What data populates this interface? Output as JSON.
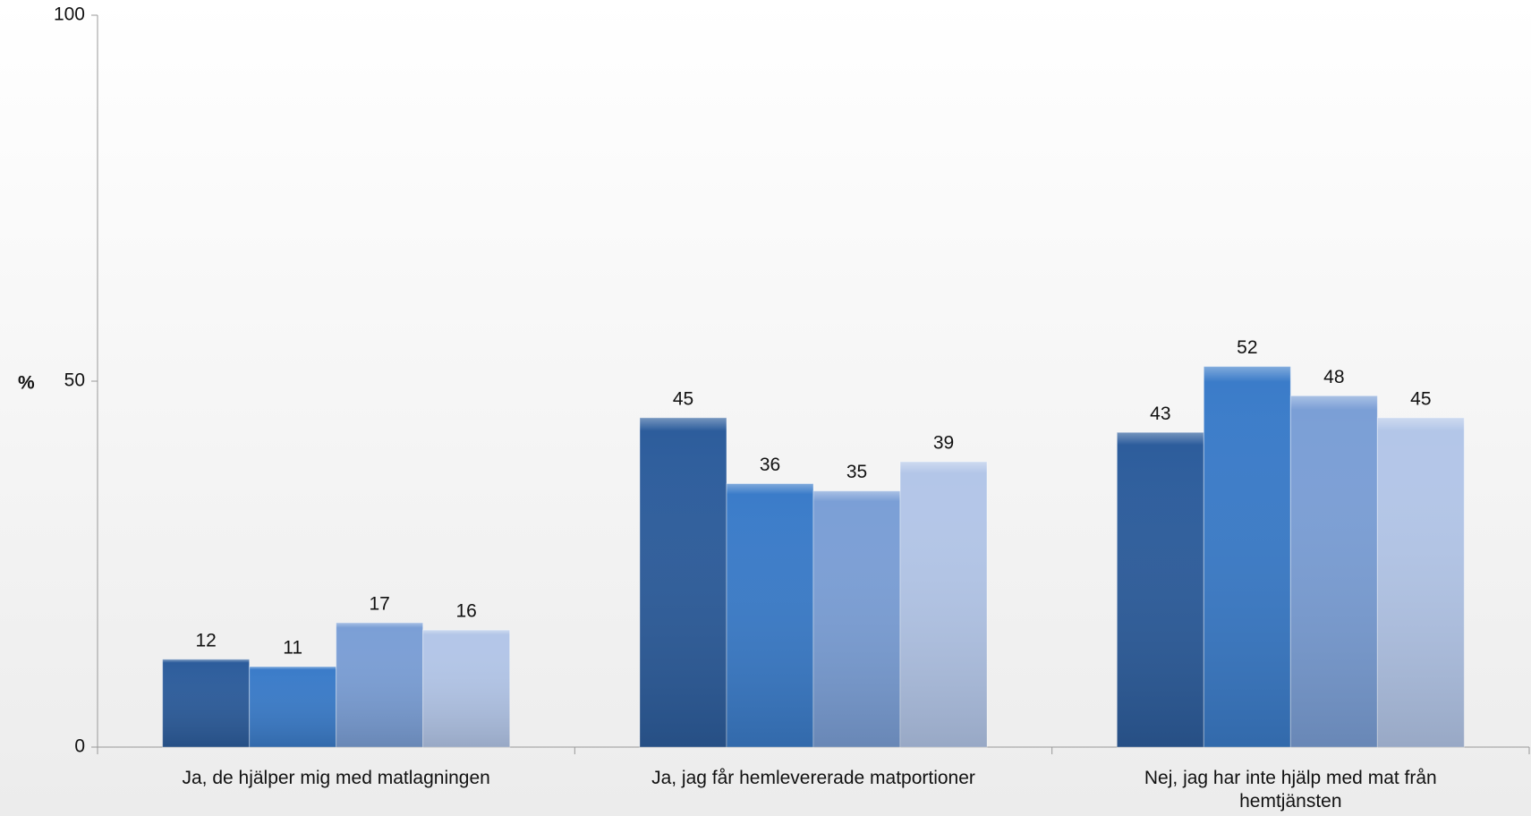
{
  "chart_data": {
    "type": "bar",
    "ylabel": "%",
    "categories": [
      "Ja, de hjälper mig med matlagningen",
      "Ja, jag får hemlevererade  matportioner",
      "Nej, jag har inte hjälp med mat från hemtjänsten"
    ],
    "series": [
      {
        "color": "#2d5d9c",
        "values": [
          12,
          45,
          43
        ]
      },
      {
        "color": "#3b7cc9",
        "values": [
          11,
          36,
          52
        ]
      },
      {
        "color": "#7b9fd6",
        "values": [
          17,
          35,
          48
        ]
      },
      {
        "color": "#b3c6e8",
        "values": [
          16,
          39,
          45
        ]
      }
    ],
    "ylim": [
      0,
      100
    ],
    "yticks": [
      0,
      50,
      100
    ],
    "grid": false
  }
}
